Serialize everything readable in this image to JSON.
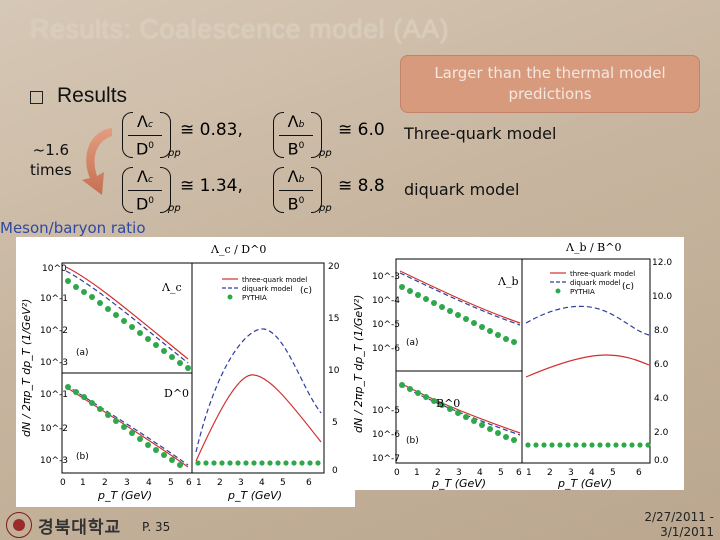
{
  "slide": {
    "title": "Results: Coalescence model (AA)",
    "callout": "Larger than the thermal model predictions",
    "bullet": "Results",
    "factor": "~1.6\ntimes",
    "three_quark_label": "Three-quark model",
    "diquark_label": "diquark model",
    "meson_label": "Meson/baryon ratio"
  },
  "formulas": {
    "row1": {
      "lc_num": "Λ",
      "lc_sub": "c",
      "lc_den": "D",
      "lc_den_sup": "0",
      "lc_val": "≅ 0.83,",
      "lb_num": "Λ",
      "lb_sub": "b",
      "lb_den": "B",
      "lb_den_sup": "0",
      "lb_val": "≅ 6.0",
      "pp": "pp"
    },
    "row2": {
      "lc_val": "≅ 1.34,",
      "lb_val": "≅ 8.8",
      "pp": "pp"
    }
  },
  "left_plot": {
    "top_title": "Λ_c / D^0",
    "y_axis": "dN / 2πp_T dp_T (1/GeV²)",
    "x_axis_left": "p_T (GeV)",
    "x_axis_right": "p_T (GeV)",
    "legend": [
      "three-quark model",
      "diquark model",
      "PYTHIA"
    ],
    "panel_labels": [
      "(a)",
      "(b)",
      "(c)"
    ],
    "particle_labels": [
      "Λ_c",
      "D^0"
    ],
    "right_ticks": [
      "20",
      "15",
      "10",
      "5",
      "0"
    ],
    "x_ticks": [
      "0",
      "1",
      "2",
      "3",
      "4",
      "5",
      "6"
    ],
    "y_ticks_top": [
      "10^0",
      "10^-1",
      "10^-2",
      "10^-3"
    ],
    "y_ticks_bottom": [
      "10^-1",
      "10^-2",
      "10^-3"
    ]
  },
  "right_plot": {
    "top_title": "Λ_b / B^0",
    "y_axis": "dN / 2πp_T dp_T (1/GeV²)",
    "x_axis_left": "p_T (GeV)",
    "x_axis_right": "p_T (GeV)",
    "legend": [
      "three-quark model",
      "diquark model",
      "PYTHIA"
    ],
    "panel_labels": [
      "(a)",
      "(b)",
      "(c)"
    ],
    "particle_labels": [
      "Λ_b",
      "B^0"
    ],
    "right_ticks": [
      "12.0",
      "10.0",
      "8.0",
      "6.0",
      "4.0",
      "2.0",
      "0.0"
    ],
    "x_ticks": [
      "0",
      "1",
      "2",
      "3",
      "4",
      "5",
      "6"
    ],
    "y_ticks_top": [
      "10^-3",
      "10^-4",
      "10^-5",
      "10^-6"
    ],
    "y_ticks_bottom": [
      "10^-5",
      "10^-6",
      "10^-7"
    ]
  },
  "footer": {
    "university": "경북대학교",
    "page": "P. 35",
    "dates": "2/27/2011 -\n3/1/2011"
  },
  "colors": {
    "three_quark": "#d22f2f",
    "diquark": "#2f3f9c",
    "pythia": "#2ea84a",
    "callout": "#d89a7d",
    "meson_label": "#2f49a3"
  }
}
